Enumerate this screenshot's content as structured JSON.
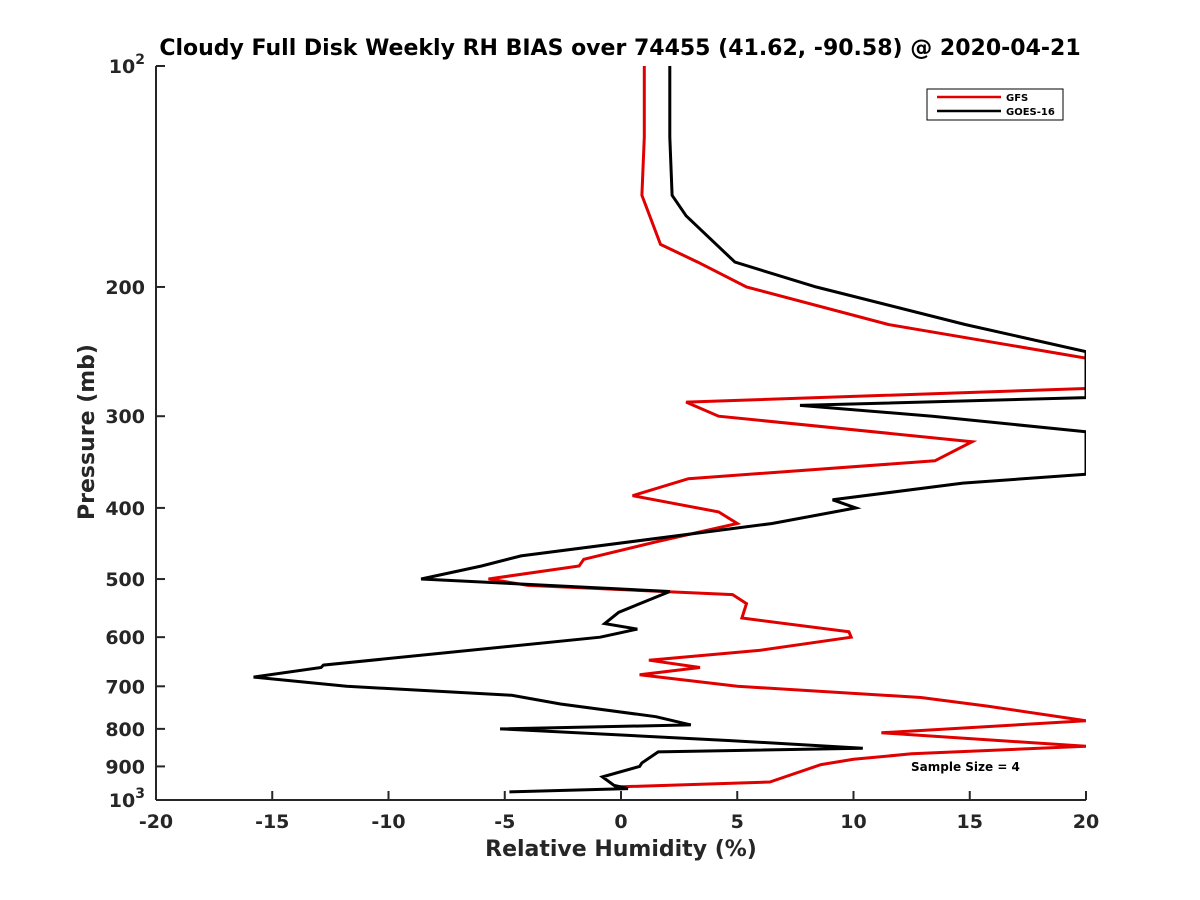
{
  "chart_data": {
    "type": "line",
    "title": "Cloudy Full Disk Weekly RH BIAS over 74455 (41.62, -90.58) @ 2020-04-21",
    "xlabel": "Relative Humidity (%)",
    "ylabel": "Pressure (mb)",
    "xlim": [
      -20,
      20
    ],
    "ylim": [
      100,
      1000
    ],
    "y_scale": "log",
    "y_reversed": true,
    "grid": false,
    "legend_position": "top-right",
    "x_ticks": [
      {
        "value": -20,
        "label": "-20"
      },
      {
        "value": -15,
        "label": "-15"
      },
      {
        "value": -10,
        "label": "-10"
      },
      {
        "value": -5,
        "label": "-5"
      },
      {
        "value": 0,
        "label": "0"
      },
      {
        "value": 5,
        "label": "5"
      },
      {
        "value": 10,
        "label": "10"
      },
      {
        "value": 15,
        "label": "15"
      },
      {
        "value": 20,
        "label": "20"
      }
    ],
    "y_ticks": [
      {
        "value": 100,
        "base": "10",
        "exp": "2"
      },
      {
        "value": 200,
        "label": "200"
      },
      {
        "value": 300,
        "label": "300"
      },
      {
        "value": 400,
        "label": "400"
      },
      {
        "value": 500,
        "label": "500"
      },
      {
        "value": 600,
        "label": "600"
      },
      {
        "value": 700,
        "label": "700"
      },
      {
        "value": 800,
        "label": "800"
      },
      {
        "value": 900,
        "label": "900"
      },
      {
        "value": 1000,
        "base": "10",
        "exp": "3"
      }
    ],
    "annotation": "Sample Size = 4",
    "series": [
      {
        "name": "GFS",
        "color": "#e00000",
        "points": [
          [
            1.0,
            100
          ],
          [
            1.0,
            125
          ],
          [
            0.9,
            150
          ],
          [
            1.7,
            175
          ],
          [
            3.3,
            185
          ],
          [
            5.4,
            200
          ],
          [
            11.5,
            225
          ],
          [
            20.0,
            250
          ],
          [
            20.0,
            275
          ],
          [
            2.8,
            287
          ],
          [
            4.2,
            300
          ],
          [
            15.1,
            325
          ],
          [
            13.5,
            345
          ],
          [
            2.9,
            365
          ],
          [
            0.5,
            385
          ],
          [
            4.2,
            405
          ],
          [
            5.0,
            420
          ],
          [
            1.5,
            445
          ],
          [
            -1.6,
            470
          ],
          [
            -1.8,
            480
          ],
          [
            -5.7,
            500
          ],
          [
            -4.0,
            510
          ],
          [
            4.8,
            525
          ],
          [
            5.4,
            540
          ],
          [
            5.2,
            565
          ],
          [
            9.8,
            590
          ],
          [
            9.9,
            600
          ],
          [
            6.0,
            625
          ],
          [
            1.2,
            645
          ],
          [
            3.4,
            660
          ],
          [
            0.8,
            675
          ],
          [
            5.0,
            700
          ],
          [
            12.9,
            725
          ],
          [
            15.8,
            745
          ],
          [
            20.0,
            780
          ],
          [
            11.2,
            810
          ],
          [
            20.0,
            845
          ],
          [
            12.5,
            865
          ],
          [
            10.0,
            880
          ],
          [
            8.6,
            895
          ],
          [
            6.4,
            945
          ],
          [
            -0.3,
            960
          ]
        ]
      },
      {
        "name": "GOES-16",
        "color": "#000000",
        "points": [
          [
            2.1,
            100
          ],
          [
            2.1,
            125
          ],
          [
            2.2,
            150
          ],
          [
            2.8,
            160
          ],
          [
            4.9,
            185
          ],
          [
            8.4,
            200
          ],
          [
            14.8,
            225
          ],
          [
            20.0,
            245
          ],
          [
            20.0,
            283
          ],
          [
            7.7,
            290
          ],
          [
            13.4,
            300
          ],
          [
            20.0,
            315
          ],
          [
            20.0,
            360
          ],
          [
            14.7,
            370
          ],
          [
            9.1,
            390
          ],
          [
            10.1,
            400
          ],
          [
            6.5,
            420
          ],
          [
            -4.3,
            465
          ],
          [
            -6.0,
            480
          ],
          [
            -8.6,
            500
          ],
          [
            2.1,
            520
          ],
          [
            -0.1,
            555
          ],
          [
            -0.7,
            575
          ],
          [
            0.7,
            585
          ],
          [
            -0.9,
            600
          ],
          [
            -12.8,
            655
          ],
          [
            -12.9,
            660
          ],
          [
            -15.8,
            680
          ],
          [
            -11.8,
            700
          ],
          [
            -4.7,
            720
          ],
          [
            -2.6,
            740
          ],
          [
            1.5,
            770
          ],
          [
            3.0,
            790
          ],
          [
            -5.2,
            800
          ],
          [
            4.7,
            830
          ],
          [
            10.4,
            850
          ],
          [
            1.6,
            860
          ],
          [
            0.9,
            890
          ],
          [
            0.8,
            900
          ],
          [
            -0.8,
            930
          ],
          [
            -0.3,
            955
          ],
          [
            0.3,
            965
          ],
          [
            -4.8,
            975
          ]
        ]
      }
    ]
  }
}
